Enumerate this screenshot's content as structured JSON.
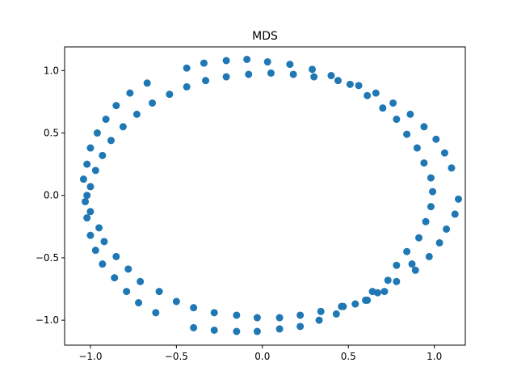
{
  "chart_data": {
    "type": "scatter",
    "title": "MDS",
    "xlabel": "",
    "ylabel": "",
    "xlim": [
      -1.15,
      1.18
    ],
    "ylim": [
      -1.2,
      1.19
    ],
    "xticks": [
      -1.0,
      -0.5,
      0.0,
      0.5,
      1.0
    ],
    "xtick_labels": [
      "−1.0",
      "−0.5",
      "0.0",
      "0.5",
      "1.0"
    ],
    "yticks": [
      -1.0,
      -0.5,
      0.0,
      0.5,
      1.0
    ],
    "ytick_labels": [
      "−1.0",
      "−0.5",
      "0.0",
      "0.5",
      "1.0"
    ],
    "grid": false,
    "marker_color": "#1f77b4",
    "points": [
      [
        -0.44,
        1.02
      ],
      [
        -0.34,
        1.06
      ],
      [
        -0.21,
        1.08
      ],
      [
        -0.09,
        1.09
      ],
      [
        0.03,
        1.07
      ],
      [
        0.16,
        1.05
      ],
      [
        0.29,
        1.01
      ],
      [
        0.4,
        0.96
      ],
      [
        0.51,
        0.89
      ],
      [
        0.66,
        0.82
      ],
      [
        0.76,
        0.74
      ],
      [
        0.86,
        0.65
      ],
      [
        0.94,
        0.55
      ],
      [
        1.01,
        0.45
      ],
      [
        1.06,
        0.34
      ],
      [
        1.1,
        0.22
      ],
      [
        1.14,
        -0.03
      ],
      [
        1.12,
        -0.15
      ],
      [
        1.07,
        -0.27
      ],
      [
        1.03,
        -0.38
      ],
      [
        0.91,
        -0.34
      ],
      [
        0.97,
        -0.49
      ],
      [
        0.84,
        -0.45
      ],
      [
        0.89,
        -0.6
      ],
      [
        0.78,
        -0.56
      ],
      [
        0.78,
        -0.69
      ],
      [
        0.67,
        -0.78
      ],
      [
        0.6,
        -0.84
      ],
      [
        0.54,
        -0.87
      ],
      [
        0.47,
        -0.89
      ],
      [
        0.43,
        -0.95
      ],
      [
        0.33,
        -1.0
      ],
      [
        0.34,
        -0.93
      ],
      [
        0.22,
        -0.96
      ],
      [
        0.22,
        -1.05
      ],
      [
        0.1,
        -0.98
      ],
      [
        0.1,
        -1.07
      ],
      [
        -0.03,
        -0.98
      ],
      [
        -0.03,
        -1.09
      ],
      [
        -0.15,
        -0.96
      ],
      [
        -0.15,
        -1.09
      ],
      [
        -0.28,
        -0.94
      ],
      [
        -0.28,
        -1.08
      ],
      [
        -0.4,
        -0.9
      ],
      [
        -0.4,
        -1.06
      ],
      [
        -0.5,
        -0.85
      ],
      [
        -0.62,
        -0.94
      ],
      [
        -0.6,
        -0.77
      ],
      [
        -0.71,
        -0.69
      ],
      [
        -0.72,
        -0.86
      ],
      [
        -0.78,
        -0.59
      ],
      [
        -0.79,
        -0.77
      ],
      [
        -0.85,
        -0.49
      ],
      [
        -0.86,
        -0.66
      ],
      [
        -0.92,
        -0.37
      ],
      [
        -0.93,
        -0.55
      ],
      [
        -0.95,
        -0.26
      ],
      [
        -0.97,
        -0.44
      ],
      [
        -1.0,
        -0.13
      ],
      [
        -1.0,
        -0.32
      ],
      [
        -1.03,
        -0.05
      ],
      [
        -1.02,
        -0.18
      ],
      [
        -1.02,
        0.0
      ],
      [
        -1.04,
        0.13
      ],
      [
        -1.0,
        0.07
      ],
      [
        -1.02,
        0.25
      ],
      [
        -0.97,
        0.2
      ],
      [
        -1.0,
        0.38
      ],
      [
        -0.93,
        0.32
      ],
      [
        -0.96,
        0.5
      ],
      [
        -0.88,
        0.44
      ],
      [
        -0.91,
        0.61
      ],
      [
        -0.81,
        0.55
      ],
      [
        -0.85,
        0.72
      ],
      [
        -0.73,
        0.65
      ],
      [
        -0.77,
        0.82
      ],
      [
        -0.64,
        0.74
      ],
      [
        -0.67,
        0.9
      ],
      [
        -0.54,
        0.81
      ],
      [
        -0.44,
        0.87
      ],
      [
        -0.33,
        0.92
      ],
      [
        -0.21,
        0.95
      ],
      [
        -0.08,
        0.97
      ],
      [
        0.05,
        0.98
      ],
      [
        0.18,
        0.97
      ],
      [
        0.3,
        0.95
      ],
      [
        0.44,
        0.92
      ],
      [
        0.56,
        0.88
      ],
      [
        0.61,
        0.8
      ],
      [
        0.7,
        0.7
      ],
      [
        0.78,
        0.61
      ],
      [
        0.84,
        0.49
      ],
      [
        0.9,
        0.38
      ],
      [
        0.94,
        0.26
      ],
      [
        0.98,
        0.14
      ],
      [
        0.99,
        0.03
      ],
      [
        0.98,
        -0.09
      ],
      [
        0.95,
        -0.21
      ],
      [
        0.87,
        -0.55
      ],
      [
        0.73,
        -0.68
      ],
      [
        0.71,
        -0.77
      ],
      [
        0.64,
        -0.77
      ],
      [
        0.61,
        -0.84
      ],
      [
        0.46,
        -0.89
      ]
    ]
  }
}
